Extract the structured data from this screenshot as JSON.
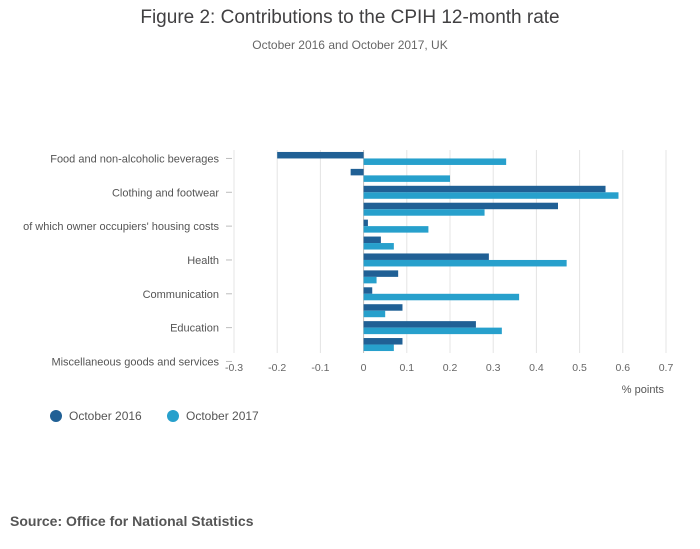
{
  "chart_data": {
    "type": "bar",
    "orientation": "horizontal",
    "title": "Figure 2: Contributions to the CPIH 12-month rate",
    "subtitle": "October 2016 and October 2017, UK",
    "xlabel": "% points",
    "xlim": [
      -0.3,
      0.7
    ],
    "xticks": [
      "-0.3",
      "-0.2",
      "-0.1",
      "0",
      "0.1",
      "0.2",
      "0.3",
      "0.4",
      "0.5",
      "0.6",
      "0.7"
    ],
    "category_labels_shown": [
      "Food and non-alcoholic beverages",
      "Clothing and footwear",
      "of which owner occupiers' housing costs",
      "Health",
      "Communication",
      "Education",
      "Miscellaneous goods and services"
    ],
    "series": [
      {
        "name": "October 2016",
        "color": "#206095",
        "values": [
          -0.2,
          -0.03,
          0.56,
          0.45,
          0.01,
          0.04,
          0.29,
          0.08,
          0.02,
          0.09,
          0.26,
          0.09
        ]
      },
      {
        "name": "October 2017",
        "color": "#27a0cc",
        "values": [
          0.33,
          0.2,
          0.59,
          0.28,
          0.15,
          0.07,
          0.47,
          0.03,
          0.36,
          0.05,
          0.32,
          0.07
        ]
      }
    ],
    "legend": "bottom-left",
    "grid": true
  },
  "source": "Source: Office for National Statistics"
}
